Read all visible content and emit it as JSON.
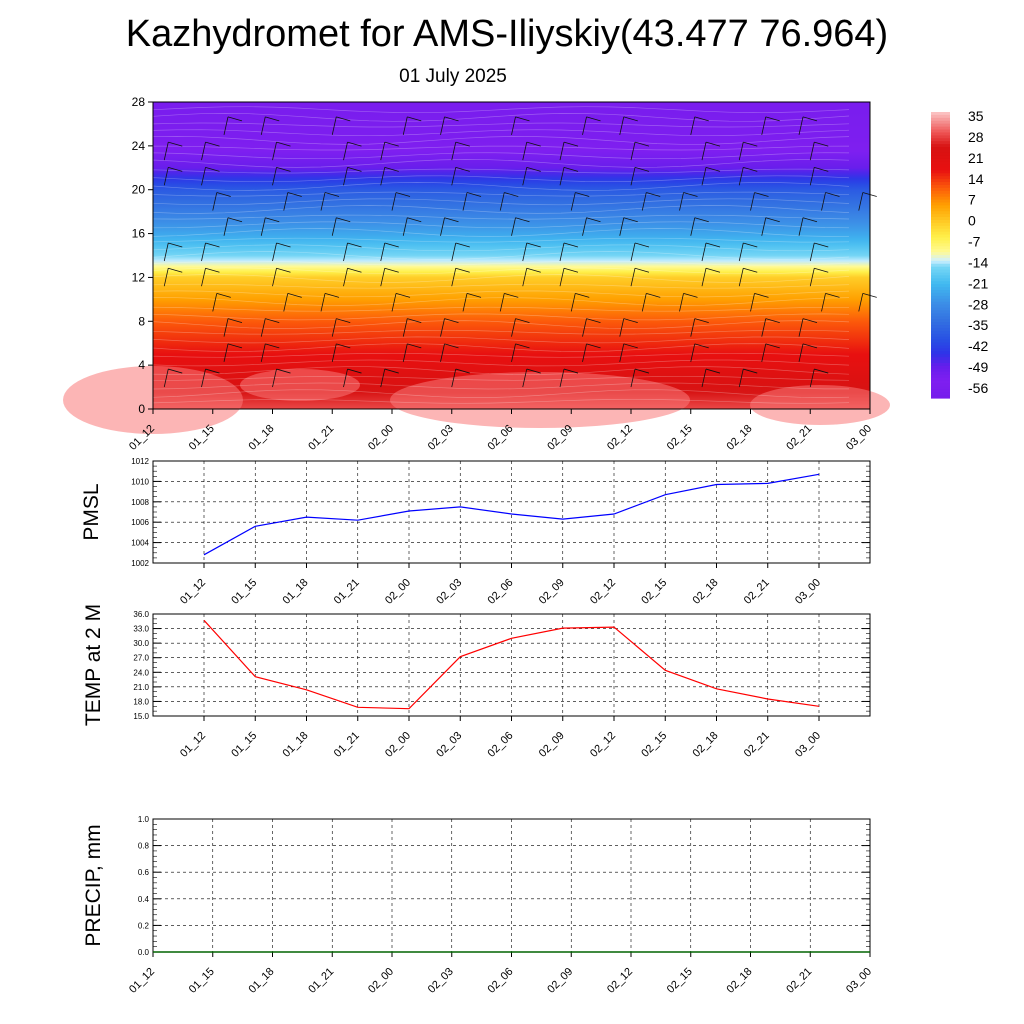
{
  "title": "Kazhydromet for AMS-Iliyskiy(43.477 76.964)",
  "subtitle": "01 July 2025",
  "time_labels": [
    "01_12",
    "01_15",
    "01_18",
    "01_21",
    "02_00",
    "02_03",
    "02_06",
    "02_09",
    "02_12",
    "02_15",
    "02_18",
    "02_21",
    "03_00"
  ],
  "chart_data": [
    {
      "type": "heatmap",
      "name": "temperature-cross-section",
      "x_categories": [
        "01_12",
        "01_15",
        "01_18",
        "01_21",
        "02_00",
        "02_03",
        "02_06",
        "02_09",
        "02_12",
        "02_15",
        "02_18",
        "02_21",
        "03_00"
      ],
      "y_ticks": [
        0,
        4,
        8,
        12,
        16,
        20,
        24,
        28
      ],
      "ylim": [
        0,
        28
      ],
      "colorbar_labels": [
        "35",
        "28",
        "21",
        "14",
        "7",
        "0",
        "-7",
        "-14",
        "-21",
        "-28",
        "-35",
        "-42",
        "-49",
        "-56"
      ],
      "colorbar_range": [
        -60,
        38
      ],
      "colors": {
        "violet": "#7f1ff0",
        "blue": "#2f3ae8",
        "mid_blue": "#3f8ee8",
        "cyan": "#40c0f0",
        "pale_cyan": "#d0f0ff",
        "yellow": "#fff04a",
        "orange": "#ffa800",
        "red": "#e81010",
        "pale_red": "#f07070"
      },
      "approx_profile": [
        {
          "level": 0,
          "value": 30
        },
        {
          "level": 4,
          "value": 20
        },
        {
          "level": 8,
          "value": 12
        },
        {
          "level": 12,
          "value": 0
        },
        {
          "level": 13.2,
          "value": -12
        },
        {
          "level": 16,
          "value": -24
        },
        {
          "level": 20,
          "value": -38
        },
        {
          "level": 22,
          "value": -50
        },
        {
          "level": 24,
          "value": -55
        },
        {
          "level": 28,
          "value": -58
        }
      ],
      "grid": false
    },
    {
      "type": "line",
      "name": "pmsl",
      "ylabel": "PMSL",
      "categories": [
        "01_12",
        "01_15",
        "01_18",
        "01_21",
        "02_00",
        "02_03",
        "02_06",
        "02_09",
        "02_12",
        "02_15",
        "02_18",
        "02_21",
        "03_00"
      ],
      "values": [
        1002.8,
        1005.6,
        1006.5,
        1006.2,
        1007.1,
        1007.5,
        1006.8,
        1006.3,
        1006.8,
        1008.7,
        1009.7,
        1009.8,
        1010.7
      ],
      "ylim": [
        1002,
        1012
      ],
      "yticks": [
        "1002",
        "1004",
        "1006",
        "1008",
        "1010",
        "1012"
      ],
      "color": "#0000ff",
      "grid": true
    },
    {
      "type": "line",
      "name": "temp2m",
      "ylabel": "TEMP at 2 M",
      "categories": [
        "01_12",
        "01_15",
        "01_18",
        "01_21",
        "02_00",
        "02_03",
        "02_06",
        "02_09",
        "02_12",
        "02_15",
        "02_18",
        "02_21",
        "03_00"
      ],
      "values": [
        34.7,
        23.1,
        20.4,
        16.8,
        16.5,
        27.2,
        31.0,
        33.1,
        33.3,
        24.4,
        20.6,
        18.5,
        17.0
      ],
      "ylim": [
        15,
        36
      ],
      "yticks": [
        "15.0",
        "18.0",
        "21.0",
        "24.0",
        "27.0",
        "30.0",
        "33.0",
        "36.0"
      ],
      "color": "#ff0000",
      "grid": true
    },
    {
      "type": "line",
      "name": "precip",
      "ylabel": "PRECIP, mm",
      "categories": [
        "01_12",
        "01_15",
        "01_18",
        "01_21",
        "02_00",
        "02_03",
        "02_06",
        "02_09",
        "02_12",
        "02_15",
        "02_18",
        "02_21",
        "03_00"
      ],
      "x_tick_labels": [
        "01_12",
        "01_15",
        "01_18",
        "01_21",
        "02_00",
        "02_03",
        "02_06",
        "02_09",
        "02_12",
        "02_15",
        "02_18",
        "02_21",
        "03_00"
      ],
      "values": [
        0,
        0,
        0,
        0,
        0,
        0,
        0,
        0,
        0,
        0,
        0,
        0,
        0
      ],
      "ylim": [
        0,
        1
      ],
      "yticks": [
        "0.0",
        "0.2",
        "0.4",
        "0.6",
        "0.8",
        "1.0"
      ],
      "color": "#006400",
      "grid": true
    }
  ]
}
